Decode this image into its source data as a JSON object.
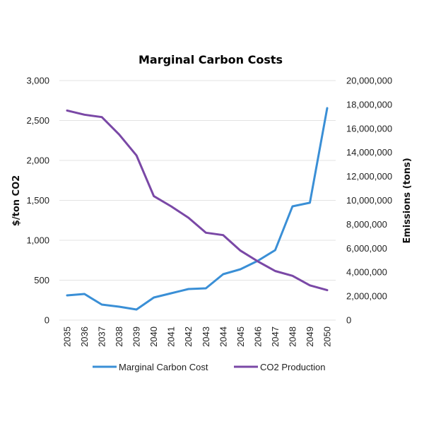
{
  "chart_data": {
    "type": "line",
    "title": "Marginal Carbon Costs",
    "xlabel": "",
    "ylabel": "$/ton CO2",
    "y2label": "Emissions (tons)",
    "categories": [
      "2035",
      "2036",
      "2037",
      "2038",
      "2039",
      "2040",
      "2041",
      "2042",
      "2043",
      "2044",
      "2045",
      "2046",
      "2047",
      "2048",
      "2049",
      "2050"
    ],
    "ylim": [
      0,
      3000
    ],
    "y2lim": [
      0,
      20000000
    ],
    "yticks": [
      "0",
      "500",
      "1,000",
      "1,500",
      "2,000",
      "2,500",
      "3,000"
    ],
    "y2ticks": [
      "0",
      "2,000,000",
      "4,000,000",
      "6,000,000",
      "8,000,000",
      "10,000,000",
      "12,000,000",
      "14,000,000",
      "16,000,000",
      "18,000,000",
      "20,000,000"
    ],
    "grid": true,
    "legend_position": "bottom",
    "series": [
      {
        "name": "Marginal Carbon Cost",
        "axis": "left",
        "color": "#3a8fd6",
        "values": [
          310,
          327,
          195,
          168,
          133,
          283,
          336,
          389,
          398,
          575,
          637,
          743,
          876,
          1425,
          1470,
          2655
        ]
      },
      {
        "name": "CO2 Production",
        "axis": "right",
        "color": "#7a48a6",
        "values": [
          17500000,
          17150000,
          16950000,
          15500000,
          13750000,
          10350000,
          9500000,
          8550000,
          7300000,
          7100000,
          5800000,
          4900000,
          4100000,
          3700000,
          2900000,
          2500000
        ]
      }
    ]
  }
}
